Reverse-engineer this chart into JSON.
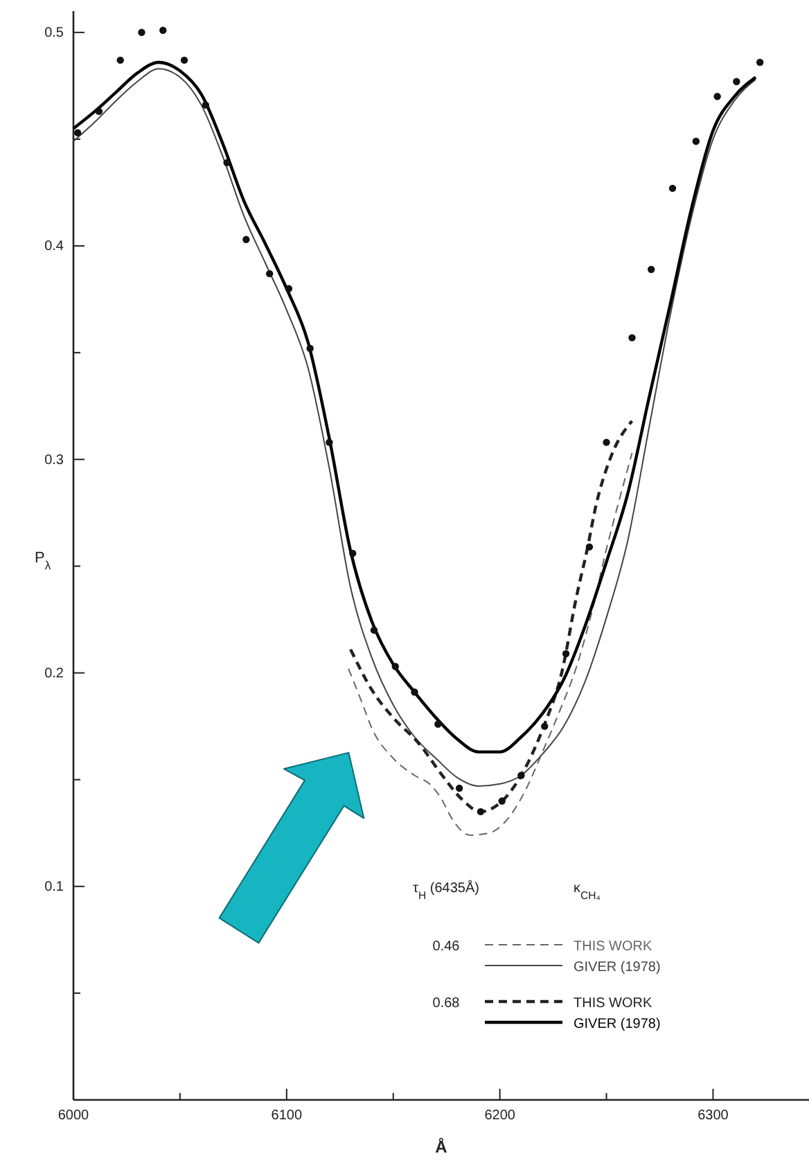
{
  "chart_data": {
    "type": "line",
    "xlabel": "Å",
    "ylabel": "P$_{λ}$",
    "legend_title": "τ$_{H}$ (6435Å)",
    "annotations": [
      "κ$_{CH₄}$",
      "0.46",
      "0.68"
    ],
    "xlim": [
      6000,
      6345
    ],
    "xticks": [
      6000,
      {
        "value": 6050,
        "label": null
      },
      6100,
      {
        "value": 6150,
        "label": null
      },
      6200,
      {
        "value": 6250,
        "label": null
      },
      6300
    ],
    "ylim": [
      0,
      0.51
    ],
    "yticks": [
      {
        "value": 0.05,
        "label": null
      },
      0.1,
      {
        "value": 0.15,
        "label": null
      },
      0.2,
      {
        "value": 0.25,
        "label": null
      },
      0.3,
      {
        "value": 0.35,
        "label": null
      },
      0.4,
      {
        "value": 0.45,
        "label": null
      },
      0.5
    ],
    "legend": "bottom right",
    "series": [
      {
        "name": "THIS WORK",
        "line_style": "dashed",
        "color": "#666666",
        "x": [
          6129,
          6135,
          6140,
          6150,
          6160,
          6167,
          6172,
          6178,
          6186,
          6195,
          6204,
          6212,
          6220,
          6228,
          6236,
          6243,
          6250,
          6256,
          6262
        ],
        "values": [
          0.202,
          0.187,
          0.174,
          0.16,
          0.152,
          0.148,
          0.142,
          0.131,
          0.124,
          0.125,
          0.132,
          0.145,
          0.163,
          0.182,
          0.203,
          0.228,
          0.258,
          0.281,
          0.303
        ]
      },
      {
        "name": "GIVER (1978)",
        "line_style": "solid",
        "color": "#444444",
        "x": [
          6000,
          6010,
          6020,
          6030,
          6040,
          6050,
          6060,
          6070,
          6080,
          6090,
          6100,
          6110,
          6120,
          6130,
          6140,
          6150,
          6160,
          6170,
          6180,
          6190,
          6200,
          6210,
          6220,
          6230,
          6240,
          6250,
          6260,
          6270,
          6280,
          6290,
          6300,
          6310,
          6320
        ],
        "values": [
          0.449,
          0.458,
          0.468,
          0.477,
          0.483,
          0.479,
          0.466,
          0.442,
          0.414,
          0.392,
          0.37,
          0.343,
          0.296,
          0.24,
          0.207,
          0.185,
          0.17,
          0.16,
          0.151,
          0.147,
          0.148,
          0.152,
          0.162,
          0.175,
          0.196,
          0.226,
          0.262,
          0.315,
          0.368,
          0.414,
          0.45,
          0.468,
          0.478
        ]
      },
      {
        "name": "THIS WORK",
        "line_style": "dashed",
        "color": "#222222",
        "x": [
          6130,
          6140,
          6150,
          6162,
          6173,
          6182,
          6191,
          6200,
          6210,
          6221,
          6229,
          6236,
          6241,
          6245,
          6252,
          6262
        ],
        "values": [
          0.211,
          0.192,
          0.179,
          0.167,
          0.152,
          0.141,
          0.135,
          0.139,
          0.152,
          0.176,
          0.2,
          0.236,
          0.258,
          0.278,
          0.301,
          0.318
        ]
      },
      {
        "name": "GIVER (1978)",
        "line_style": "solid",
        "color": "#000000",
        "x": [
          6000,
          6010,
          6020,
          6030,
          6040,
          6050,
          6060,
          6070,
          6080,
          6090,
          6100,
          6110,
          6120,
          6130,
          6140,
          6150,
          6160,
          6170,
          6180,
          6190,
          6200,
          6210,
          6220,
          6230,
          6240,
          6250,
          6260,
          6270,
          6280,
          6290,
          6300,
          6310,
          6320
        ],
        "values": [
          0.455,
          0.463,
          0.472,
          0.481,
          0.486,
          0.482,
          0.471,
          0.448,
          0.421,
          0.401,
          0.38,
          0.355,
          0.31,
          0.257,
          0.224,
          0.204,
          0.191,
          0.179,
          0.169,
          0.163,
          0.163,
          0.17,
          0.181,
          0.197,
          0.222,
          0.252,
          0.284,
          0.329,
          0.373,
          0.418,
          0.454,
          0.47,
          0.479
        ]
      },
      {
        "type": "scatter",
        "marker": "circle",
        "color": "#111111",
        "x": [
          6002,
          6012,
          6022,
          6032,
          6042,
          6052,
          6062,
          6072,
          6081,
          6092,
          6101,
          6111,
          6120,
          6131,
          6141,
          6151,
          6160,
          6171,
          6181,
          6191,
          6201,
          6210,
          6221,
          6231,
          6242,
          6250,
          6262,
          6271,
          6281,
          6292,
          6302,
          6311,
          6322
        ],
        "values": [
          0.453,
          0.463,
          0.487,
          0.5,
          0.501,
          0.487,
          0.466,
          0.439,
          0.403,
          0.387,
          0.38,
          0.352,
          0.308,
          0.256,
          0.22,
          0.203,
          0.191,
          0.176,
          0.146,
          0.135,
          0.14,
          0.152,
          0.175,
          0.209,
          0.259,
          0.308,
          0.357,
          0.389,
          0.427,
          0.449,
          0.47,
          0.477,
          0.486
        ]
      }
    ]
  }
}
